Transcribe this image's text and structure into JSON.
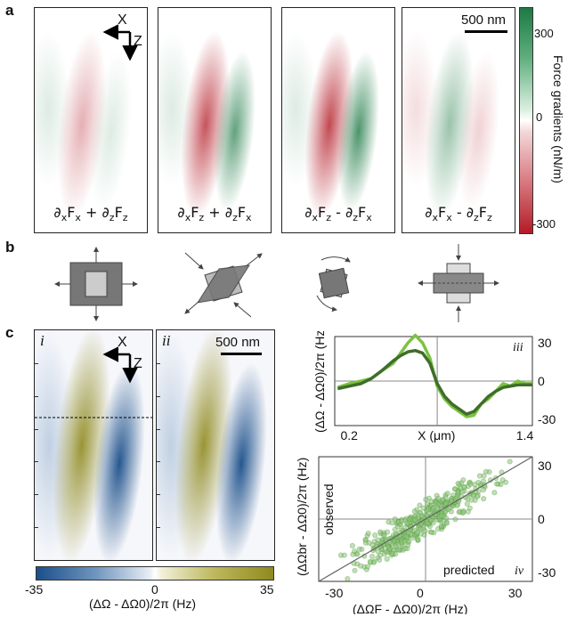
{
  "panel_labels": {
    "a": "a",
    "b": "b",
    "c": "c"
  },
  "panel_a": {
    "maps": [
      {
        "label": "∂xFx + ∂zFz",
        "lhs": "∂",
        "sub1": "x",
        "F1": "F",
        "sub1b": "x",
        "op": " + ",
        "sub2": "z",
        "sub2b": "z"
      },
      {
        "label": "∂xFz + ∂zFx",
        "lhs": "∂",
        "sub1": "x",
        "F1": "F",
        "sub1b": "z",
        "op": " + ",
        "sub2": "z",
        "sub2b": "x"
      },
      {
        "label": "∂xFz - ∂zFx",
        "lhs": "∂",
        "sub1": "x",
        "F1": "F",
        "sub1b": "z",
        "op": " - ",
        "sub2": "z",
        "sub2b": "x"
      },
      {
        "label": "∂xFx - ∂zFz",
        "lhs": "∂",
        "sub1": "x",
        "F1": "F",
        "sub1b": "x",
        "op": " - ",
        "sub2": "z",
        "sub2b": "z"
      }
    ],
    "axis_x": "X",
    "axis_z": "Z",
    "scalebar": "500 nm",
    "colorbar": {
      "title": "Force gradients (nN/m)",
      "ticks": [
        "300",
        "0",
        "-300"
      ],
      "colors": {
        "pos": "#1f7a45",
        "neg": "#b31b26"
      }
    }
  },
  "panel_c": {
    "map_labels": [
      "i",
      "ii"
    ],
    "axis_x": "X",
    "axis_z": "Z",
    "scalebar": "500 nm",
    "colorbar": {
      "ticks": [
        "-35",
        "0",
        "35"
      ],
      "label": "(ΔΩ - ΔΩ0)/2π (Hz)",
      "colors": {
        "neg": "#1b4f8a",
        "pos": "#8f8a1f"
      }
    },
    "plot_iii_label": "iii",
    "plot_iv_label": "iv",
    "observed": "observed",
    "predicted": "predicted"
  },
  "chart_data": [
    {
      "type": "line",
      "title": "",
      "xlabel": "X (μm)",
      "ylabel": "(ΔΩ - ΔΩ0)/2π (Hz)",
      "xlim": [
        0.1,
        1.45
      ],
      "ylim": [
        -35,
        35
      ],
      "x_ticks": [
        "0.2",
        "1.4"
      ],
      "y_ticks": [
        "30",
        "0",
        "-30"
      ],
      "x": [
        0.12,
        0.2,
        0.28,
        0.35,
        0.42,
        0.5,
        0.55,
        0.6,
        0.65,
        0.7,
        0.75,
        0.8,
        0.85,
        0.9,
        0.95,
        1.0,
        1.05,
        1.1,
        1.15,
        1.2,
        1.25,
        1.3,
        1.35,
        1.4,
        1.45
      ],
      "series": [
        {
          "name": "",
          "color": "#7cc242",
          "values": [
            -5,
            -2,
            0,
            2,
            8,
            14,
            22,
            30,
            36,
            30,
            18,
            -4,
            -14,
            -20,
            -24,
            -28,
            -27,
            -18,
            -14,
            -8,
            -2,
            -4,
            0,
            -2,
            -2
          ]
        },
        {
          "name": "",
          "color": "#3f6e2a",
          "values": [
            -6,
            -4,
            -2,
            2,
            8,
            16,
            20,
            23,
            24,
            22,
            14,
            -2,
            -12,
            -18,
            -22,
            -26,
            -24,
            -18,
            -12,
            -8,
            -5,
            -4,
            -3,
            -3,
            -3
          ]
        }
      ]
    },
    {
      "type": "scatter",
      "title": "",
      "xlabel": "(ΔΩF - ΔΩ0)/2π (Hz)",
      "ylabel": "(ΔΩbr - ΔΩ0)/2π (Hz)",
      "xlim": [
        -35,
        35
      ],
      "ylim": [
        -35,
        35
      ],
      "x_ticks": [
        "-30",
        "0",
        "30"
      ],
      "y_ticks": [
        "30",
        "0",
        "-30"
      ],
      "point_color": "#8fc97a",
      "fit_line": {
        "slope": 1,
        "intercept": 0
      }
    }
  ]
}
